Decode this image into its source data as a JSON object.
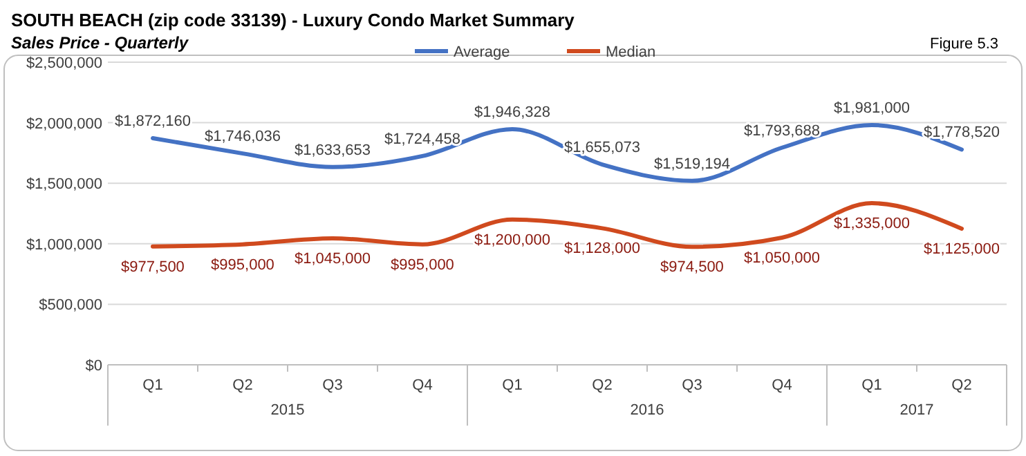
{
  "chart_data": {
    "type": "line",
    "title": "SOUTH BEACH (zip code 33139) - Luxury Condo Market Summary",
    "subtitle": "Sales Price - Quarterly",
    "annotations": [
      "Figure 5.3",
      "2015",
      "2016",
      "2017"
    ],
    "categories": [
      "Q1",
      "Q2",
      "Q3",
      "Q4",
      "Q1",
      "Q2",
      "Q3",
      "Q4",
      "Q1",
      "Q2"
    ],
    "series": [
      {
        "name": "Average",
        "color": "#4472c4",
        "values": [
          1872160,
          1746036,
          1633653,
          1724458,
          1946328,
          1655073,
          1519194,
          1793688,
          1981000,
          1778520
        ],
        "value_labels": [
          "$1,872,160",
          "$1,746,036",
          "$1,633,653",
          "$1,724,458",
          "$1,946,328",
          "$1,655,073",
          "$1,519,194",
          "$1,793,688",
          "$1,981,000",
          "$1,778,520"
        ]
      },
      {
        "name": "Median",
        "color": "#d04a1e",
        "values": [
          977500,
          995000,
          1045000,
          995000,
          1200000,
          1128000,
          974500,
          1050000,
          1335000,
          1125000
        ],
        "value_labels": [
          "$977,500",
          "$995,000",
          "$1,045,000",
          "$995,000",
          "$1,200,000",
          "$1,128,000",
          "$974,500",
          "$1,050,000",
          "$1,335,000",
          "$1,125,000"
        ]
      }
    ],
    "ylim": [
      0,
      2500000
    ],
    "yticks": [
      {
        "value": 0,
        "label": "$0"
      },
      {
        "value": 500000,
        "label": "$500,000"
      },
      {
        "value": 1000000,
        "label": "$1,000,000"
      },
      {
        "value": 1500000,
        "label": "$1,500,000"
      },
      {
        "value": 2000000,
        "label": "$2,000,000"
      },
      {
        "value": 2500000,
        "label": "$2,500,000"
      }
    ],
    "grid": "y",
    "legend": "top",
    "marker": "none",
    "line_style": "solid"
  }
}
